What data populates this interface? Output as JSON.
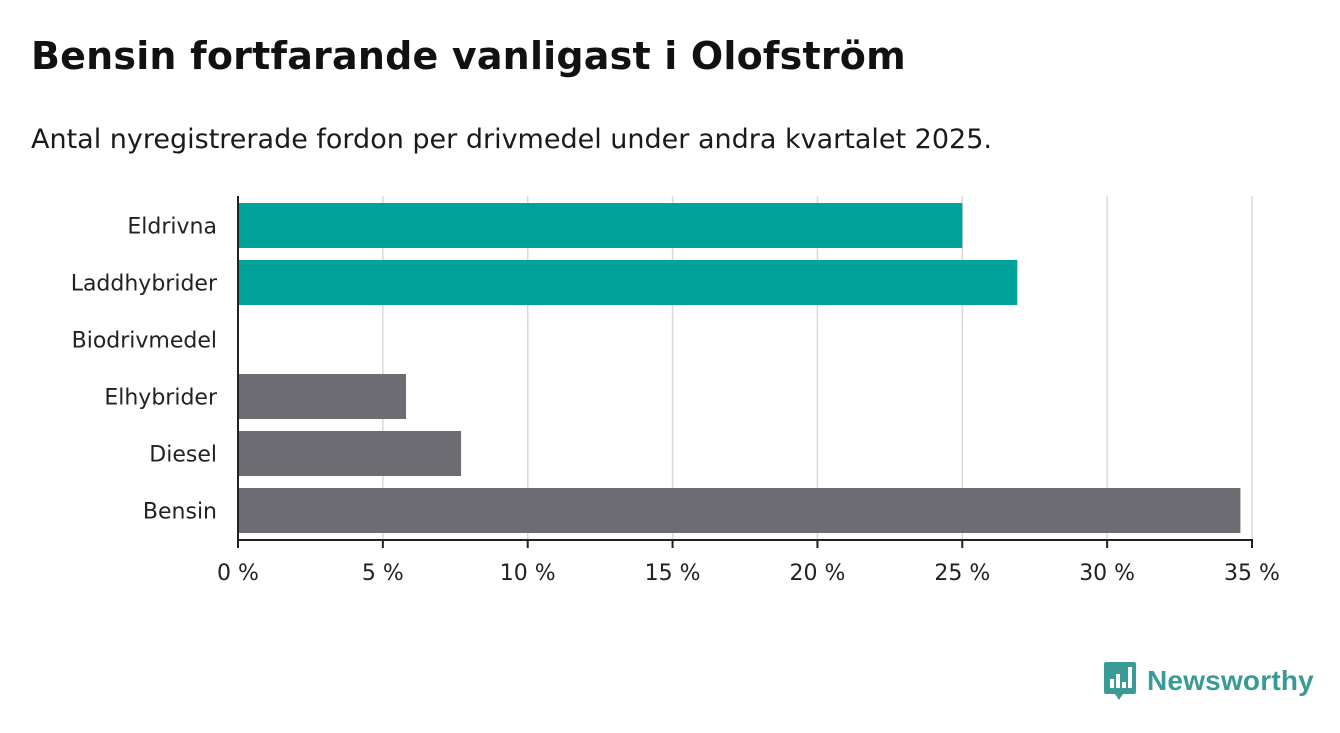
{
  "title": "Bensin fortfarande vanligast i Olofström",
  "subtitle": "Antal nyregistrerade fordon per drivmedel under andra kvartalet 2025.",
  "brand": {
    "name": "Newsworthy",
    "icon": "newsworthy-logo-icon",
    "color": "#3a9a96"
  },
  "colors": {
    "highlight": "#00a39a",
    "muted": "#6d6c73",
    "grid": "#d9d9d9",
    "axis": "#222222"
  },
  "chart_data": {
    "type": "bar",
    "orientation": "horizontal",
    "categories": [
      "Eldrivna",
      "Laddhybrider",
      "Biodrivmedel",
      "Elhybrider",
      "Diesel",
      "Bensin"
    ],
    "values": [
      25.0,
      26.9,
      0,
      5.8,
      7.7,
      34.6
    ],
    "bar_colors": [
      "#00a39a",
      "#00a39a",
      "#6d6c73",
      "#6d6c73",
      "#6d6c73",
      "#6d6c73"
    ],
    "xlim": [
      0,
      35
    ],
    "xticks": [
      0,
      5,
      10,
      15,
      20,
      25,
      30,
      35
    ],
    "xtick_labels": [
      "0 %",
      "5 %",
      "10 %",
      "15 %",
      "20 %",
      "25 %",
      "30 %",
      "35 %"
    ],
    "grid": true,
    "xlabel": "",
    "ylabel": ""
  }
}
